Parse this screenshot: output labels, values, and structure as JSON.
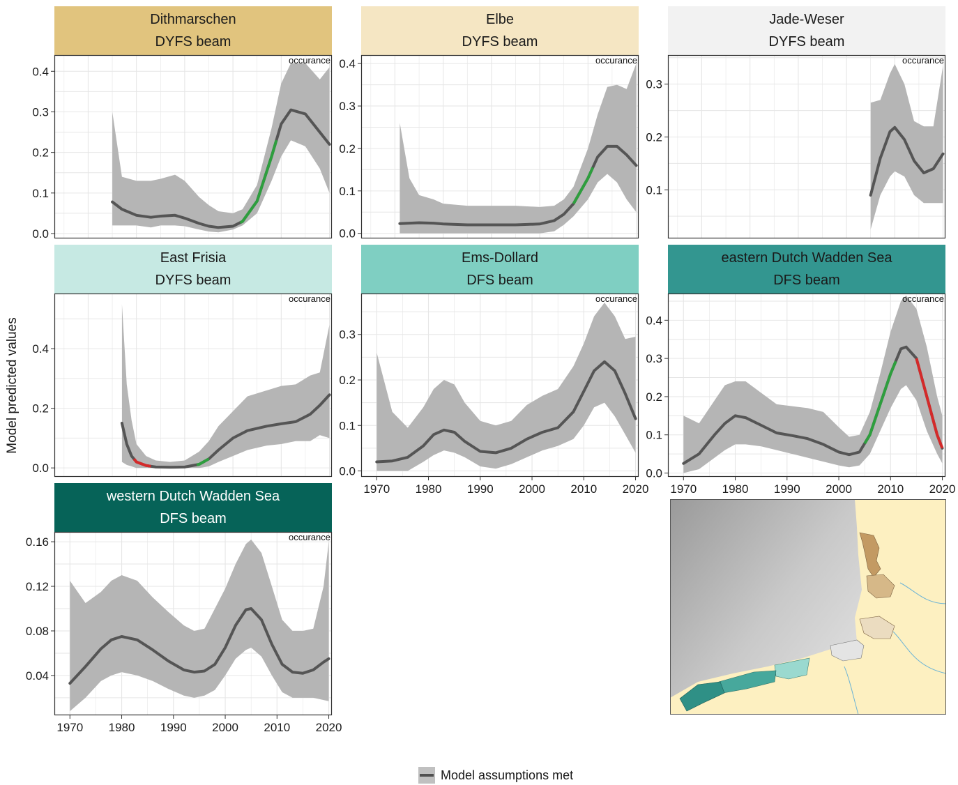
{
  "figure": {
    "ylabel": "Model predicted values",
    "corner_tag": "occurance",
    "legend_label": "Model assumptions met",
    "colors": {
      "ribbon": "#b5b5b5",
      "fit": "#555555",
      "increase": "#2e9e3e",
      "decrease": "#d42a2a",
      "grid": "#e6e6e6"
    }
  },
  "chart_data": [
    {
      "type": "line",
      "panel": "Dithmarschen",
      "title": "Dithmarschen",
      "subtitle": "DYFS beam",
      "strip_color": "#e1c47e",
      "xlim": [
        1963,
        2020.5
      ],
      "ylim": [
        -0.012,
        0.44
      ],
      "yticks": [
        0.0,
        0.1,
        0.2,
        0.3,
        0.4
      ],
      "ytick_labels": [
        "0.0",
        "0.1",
        "0.2",
        "0.3",
        "0.4"
      ],
      "xticks": [],
      "xtick_labels": [],
      "x": [
        1975,
        1977,
        1980,
        1983,
        1985,
        1988,
        1990,
        1993,
        1995,
        1997,
        2000,
        2002,
        2005,
        2008,
        2010,
        2012,
        2015,
        2018,
        2020
      ],
      "y": [
        0.078,
        0.06,
        0.045,
        0.04,
        0.043,
        0.045,
        0.038,
        0.025,
        0.018,
        0.015,
        0.018,
        0.03,
        0.08,
        0.19,
        0.27,
        0.305,
        0.295,
        0.25,
        0.22
      ],
      "lower": [
        0.02,
        0.02,
        0.02,
        0.015,
        0.02,
        0.02,
        0.018,
        0.01,
        0.005,
        0.003,
        0.01,
        0.02,
        0.05,
        0.13,
        0.19,
        0.23,
        0.215,
        0.16,
        0.1
      ],
      "upper": [
        0.3,
        0.14,
        0.13,
        0.13,
        0.135,
        0.145,
        0.13,
        0.09,
        0.07,
        0.055,
        0.05,
        0.06,
        0.12,
        0.26,
        0.37,
        0.42,
        0.42,
        0.38,
        0.41
      ],
      "highlights": [
        {
          "from": 2001.5,
          "to": 2009,
          "trend": "increase"
        }
      ]
    },
    {
      "type": "line",
      "panel": "Elbe",
      "title": "Elbe",
      "subtitle": "DYFS beam",
      "strip_color": "#f5e6c3",
      "xlim": [
        1963,
        2020.5
      ],
      "ylim": [
        -0.012,
        0.42
      ],
      "yticks": [
        0.0,
        0.1,
        0.2,
        0.3,
        0.4
      ],
      "ytick_labels": [
        "0.0",
        "0.1",
        "0.2",
        "0.3",
        "0.4"
      ],
      "xticks": [],
      "xtick_labels": [],
      "x": [
        1971,
        1973,
        1975,
        1978,
        1980,
        1985,
        1990,
        1995,
        2000,
        2003,
        2005,
        2007,
        2010,
        2012,
        2014,
        2016,
        2018,
        2020
      ],
      "y": [
        0.023,
        0.024,
        0.025,
        0.024,
        0.022,
        0.02,
        0.02,
        0.02,
        0.022,
        0.03,
        0.045,
        0.07,
        0.13,
        0.18,
        0.205,
        0.205,
        0.185,
        0.16
      ],
      "lower": [
        0.0,
        0.0,
        0.0,
        0.0,
        0.0,
        0.0,
        0.0,
        0.0,
        0.0,
        0.005,
        0.02,
        0.04,
        0.08,
        0.12,
        0.14,
        0.12,
        0.08,
        0.05
      ],
      "upper": [
        0.26,
        0.13,
        0.09,
        0.08,
        0.07,
        0.065,
        0.065,
        0.065,
        0.062,
        0.065,
        0.08,
        0.11,
        0.2,
        0.28,
        0.345,
        0.35,
        0.34,
        0.4
      ],
      "highlights": [
        {
          "from": 2007,
          "to": 2011,
          "trend": "increase"
        }
      ]
    },
    {
      "type": "line",
      "panel": "Jade-Weser",
      "title": "Jade-Weser",
      "subtitle": "DYFS beam",
      "strip_color": "#f2f2f2",
      "xlim": [
        1963,
        2020.5
      ],
      "ylim": [
        0.008,
        0.355
      ],
      "yticks": [
        0.1,
        0.2,
        0.3
      ],
      "ytick_labels": [
        "0.1",
        "0.2",
        "0.3"
      ],
      "xticks": [],
      "xtick_labels": [],
      "x": [
        2005,
        2007,
        2009,
        2010,
        2012,
        2014,
        2016,
        2018,
        2020
      ],
      "y": [
        0.09,
        0.16,
        0.21,
        0.218,
        0.195,
        0.155,
        0.132,
        0.14,
        0.168
      ],
      "lower": [
        0.025,
        0.09,
        0.125,
        0.135,
        0.125,
        0.09,
        0.075,
        0.075,
        0.075
      ],
      "upper": [
        0.265,
        0.27,
        0.32,
        0.338,
        0.3,
        0.23,
        0.22,
        0.22,
        0.335
      ],
      "highlights": []
    },
    {
      "type": "line",
      "panel": "East Frisia",
      "title": "East Frisia",
      "subtitle": "DYFS beam",
      "strip_color": "#c6e9e3",
      "xlim": [
        1963,
        2020.5
      ],
      "ylim": [
        -0.03,
        0.585
      ],
      "yticks": [
        0.0,
        0.2,
        0.4
      ],
      "ytick_labels": [
        "0.0",
        "0.2",
        "0.4"
      ],
      "xticks": [],
      "xtick_labels": [],
      "x": [
        1977,
        1978,
        1979,
        1980,
        1982,
        1984,
        1987,
        1990,
        1993,
        1995,
        1997,
        2000,
        2003,
        2007,
        2010,
        2013,
        2016,
        2018,
        2020
      ],
      "y": [
        0.15,
        0.08,
        0.04,
        0.02,
        0.008,
        0.003,
        0.002,
        0.003,
        0.012,
        0.03,
        0.06,
        0.1,
        0.125,
        0.14,
        0.148,
        0.155,
        0.18,
        0.21,
        0.245
      ],
      "lower": [
        0.02,
        0.01,
        0.005,
        0.0,
        0.0,
        0.0,
        0.0,
        0.0,
        0.0,
        0.005,
        0.02,
        0.04,
        0.06,
        0.075,
        0.08,
        0.09,
        0.09,
        0.11,
        0.1
      ],
      "upper": [
        0.55,
        0.28,
        0.16,
        0.08,
        0.04,
        0.025,
        0.02,
        0.025,
        0.055,
        0.09,
        0.14,
        0.19,
        0.24,
        0.26,
        0.275,
        0.28,
        0.31,
        0.32,
        0.48
      ],
      "highlights": [
        {
          "from": 1979.5,
          "to": 1983,
          "trend": "decrease"
        },
        {
          "from": 1992.5,
          "to": 1995,
          "trend": "increase"
        }
      ]
    },
    {
      "type": "line",
      "panel": "Ems-Dollard",
      "title": "Ems-Dollard",
      "subtitle": "DFS beam",
      "strip_color": "#7fcfc2",
      "xlim": [
        1967,
        2020.6
      ],
      "ylim": [
        -0.013,
        0.39
      ],
      "yticks": [
        0.0,
        0.1,
        0.2,
        0.3
      ],
      "ytick_labels": [
        "0.0",
        "0.1",
        "0.2",
        "0.3"
      ],
      "xticks": [
        1970,
        1980,
        1990,
        2000,
        2010,
        2020
      ],
      "xtick_labels": [
        "1970",
        "1980",
        "1990",
        "2000",
        "2010",
        "2020"
      ],
      "x": [
        1970,
        1973,
        1976,
        1979,
        1981,
        1983,
        1985,
        1987,
        1990,
        1993,
        1996,
        1999,
        2002,
        2005,
        2008,
        2010,
        2012,
        2014,
        2016,
        2018,
        2020
      ],
      "y": [
        0.02,
        0.022,
        0.03,
        0.055,
        0.08,
        0.09,
        0.085,
        0.065,
        0.043,
        0.04,
        0.05,
        0.07,
        0.085,
        0.095,
        0.13,
        0.175,
        0.22,
        0.24,
        0.22,
        0.17,
        0.115
      ],
      "lower": [
        0.0,
        0.0,
        0.0,
        0.02,
        0.035,
        0.045,
        0.04,
        0.03,
        0.01,
        0.005,
        0.015,
        0.03,
        0.045,
        0.055,
        0.07,
        0.1,
        0.14,
        0.15,
        0.12,
        0.08,
        0.04
      ],
      "upper": [
        0.26,
        0.13,
        0.095,
        0.14,
        0.18,
        0.2,
        0.19,
        0.15,
        0.11,
        0.1,
        0.11,
        0.145,
        0.165,
        0.18,
        0.23,
        0.28,
        0.34,
        0.37,
        0.34,
        0.29,
        0.295
      ],
      "highlights": []
    },
    {
      "type": "line",
      "panel": "eastern Dutch Wadden Sea",
      "title": "eastern Dutch Wadden Sea",
      "subtitle": "DFS beam",
      "strip_color": "#339690",
      "xlim": [
        1967,
        2020.6
      ],
      "ylim": [
        -0.01,
        0.47
      ],
      "yticks": [
        0.0,
        0.1,
        0.2,
        0.3,
        0.4
      ],
      "ytick_labels": [
        "0.0",
        "0.1",
        "0.2",
        "0.3",
        "0.4"
      ],
      "xticks": [
        1970,
        1980,
        1990,
        2000,
        2010,
        2020
      ],
      "xtick_labels": [
        "1970",
        "1980",
        "1990",
        "2000",
        "2010",
        "2020"
      ],
      "x": [
        1970,
        1973,
        1976,
        1978,
        1980,
        1982,
        1985,
        1988,
        1991,
        1994,
        1997,
        2000,
        2002,
        2004,
        2006,
        2008,
        2010,
        2012,
        2013,
        2015,
        2017,
        2019,
        2020
      ],
      "y": [
        0.025,
        0.05,
        0.1,
        0.13,
        0.15,
        0.145,
        0.125,
        0.105,
        0.098,
        0.09,
        0.075,
        0.055,
        0.048,
        0.055,
        0.1,
        0.18,
        0.26,
        0.325,
        0.33,
        0.3,
        0.2,
        0.1,
        0.065
      ],
      "lower": [
        0.0,
        0.01,
        0.04,
        0.06,
        0.075,
        0.075,
        0.07,
        0.06,
        0.05,
        0.04,
        0.03,
        0.02,
        0.015,
        0.02,
        0.05,
        0.11,
        0.17,
        0.22,
        0.23,
        0.19,
        0.11,
        0.05,
        0.025
      ],
      "upper": [
        0.15,
        0.13,
        0.19,
        0.23,
        0.24,
        0.24,
        0.21,
        0.18,
        0.175,
        0.17,
        0.16,
        0.12,
        0.095,
        0.1,
        0.16,
        0.26,
        0.37,
        0.45,
        0.465,
        0.43,
        0.33,
        0.2,
        0.15
      ],
      "highlights": [
        {
          "from": 2005,
          "to": 2011,
          "trend": "increase"
        },
        {
          "from": 2015,
          "to": 2020,
          "trend": "decrease"
        }
      ]
    },
    {
      "type": "line",
      "panel": "western Dutch Wadden Sea",
      "title": "western Dutch Wadden Sea",
      "subtitle": "DFS beam",
      "strip_color": "#066358",
      "xlim": [
        1967,
        2020.6
      ],
      "ylim": [
        0.0043,
        0.1688
      ],
      "yticks": [
        0.04,
        0.08,
        0.12,
        0.16
      ],
      "ytick_labels": [
        "0.04",
        "0.08",
        "0.12",
        "0.16"
      ],
      "xticks": [
        1970,
        1980,
        1990,
        2000,
        2010,
        2020
      ],
      "xtick_labels": [
        "1970",
        "1980",
        "1990",
        "2000",
        "2010",
        "2020"
      ],
      "x": [
        1970,
        1973,
        1976,
        1978,
        1980,
        1983,
        1986,
        1989,
        1992,
        1994,
        1996,
        1998,
        2000,
        2002,
        2004,
        2005,
        2007,
        2009,
        2011,
        2013,
        2015,
        2017,
        2019,
        2020
      ],
      "y": [
        0.033,
        0.048,
        0.064,
        0.072,
        0.075,
        0.072,
        0.063,
        0.053,
        0.045,
        0.043,
        0.044,
        0.05,
        0.065,
        0.085,
        0.099,
        0.1,
        0.09,
        0.068,
        0.05,
        0.043,
        0.042,
        0.045,
        0.052,
        0.055
      ],
      "lower": [
        0.008,
        0.02,
        0.035,
        0.04,
        0.043,
        0.04,
        0.035,
        0.028,
        0.022,
        0.02,
        0.022,
        0.027,
        0.04,
        0.055,
        0.063,
        0.065,
        0.057,
        0.04,
        0.025,
        0.02,
        0.02,
        0.02,
        0.018,
        0.017
      ],
      "upper": [
        0.125,
        0.105,
        0.115,
        0.125,
        0.13,
        0.125,
        0.11,
        0.097,
        0.085,
        0.08,
        0.082,
        0.1,
        0.118,
        0.14,
        0.158,
        0.162,
        0.15,
        0.12,
        0.09,
        0.08,
        0.08,
        0.082,
        0.12,
        0.16
      ],
      "highlights": []
    }
  ]
}
